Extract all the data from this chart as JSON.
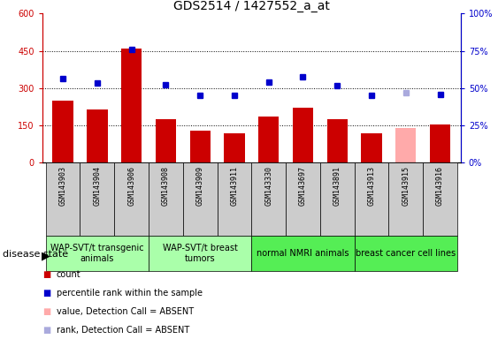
{
  "title": "GDS2514 / 1427552_a_at",
  "samples": [
    "GSM143903",
    "GSM143904",
    "GSM143906",
    "GSM143908",
    "GSM143909",
    "GSM143911",
    "GSM143330",
    "GSM143697",
    "GSM143891",
    "GSM143913",
    "GSM143915",
    "GSM143916"
  ],
  "counts": [
    250,
    215,
    460,
    175,
    130,
    120,
    185,
    220,
    175,
    120,
    140,
    155
  ],
  "percentile_ranks": [
    340,
    320,
    455,
    315,
    270,
    270,
    325,
    345,
    310,
    270,
    280,
    275
  ],
  "absent_bars": [
    false,
    false,
    false,
    false,
    false,
    false,
    false,
    false,
    false,
    false,
    true,
    false
  ],
  "absent_ranks": [
    false,
    false,
    false,
    false,
    false,
    false,
    false,
    false,
    false,
    false,
    true,
    false
  ],
  "ylim_left": [
    0,
    600
  ],
  "ylim_right": [
    0,
    100
  ],
  "yticks_left": [
    0,
    150,
    300,
    450,
    600
  ],
  "ytick_labels_left": [
    "0",
    "150",
    "300",
    "450",
    "600"
  ],
  "yticks_right": [
    0,
    25,
    50,
    75,
    100
  ],
  "ytick_labels_right": [
    "0%",
    "25%",
    "50%",
    "75%",
    "100%"
  ],
  "groups": [
    {
      "label": "WAP-SVT/t transgenic\nanimals",
      "n": 3,
      "color": "#aaffaa"
    },
    {
      "label": "WAP-SVT/t breast\ntumors",
      "n": 3,
      "color": "#aaffaa"
    },
    {
      "label": "normal NMRI animals",
      "n": 3,
      "color": "#55ee55"
    },
    {
      "label": "breast cancer cell lines",
      "n": 3,
      "color": "#55ee55"
    }
  ],
  "bar_color_present": "#cc0000",
  "bar_color_absent": "#ffaaaa",
  "rank_color_present": "#0000cc",
  "rank_color_absent": "#aaaadd",
  "bg_color": "#ffffff",
  "sample_bg_color": "#cccccc",
  "font_size_title": 10,
  "font_size_tick": 7,
  "font_size_sample": 6,
  "font_size_group": 7,
  "font_size_legend": 7,
  "font_size_disease": 8
}
